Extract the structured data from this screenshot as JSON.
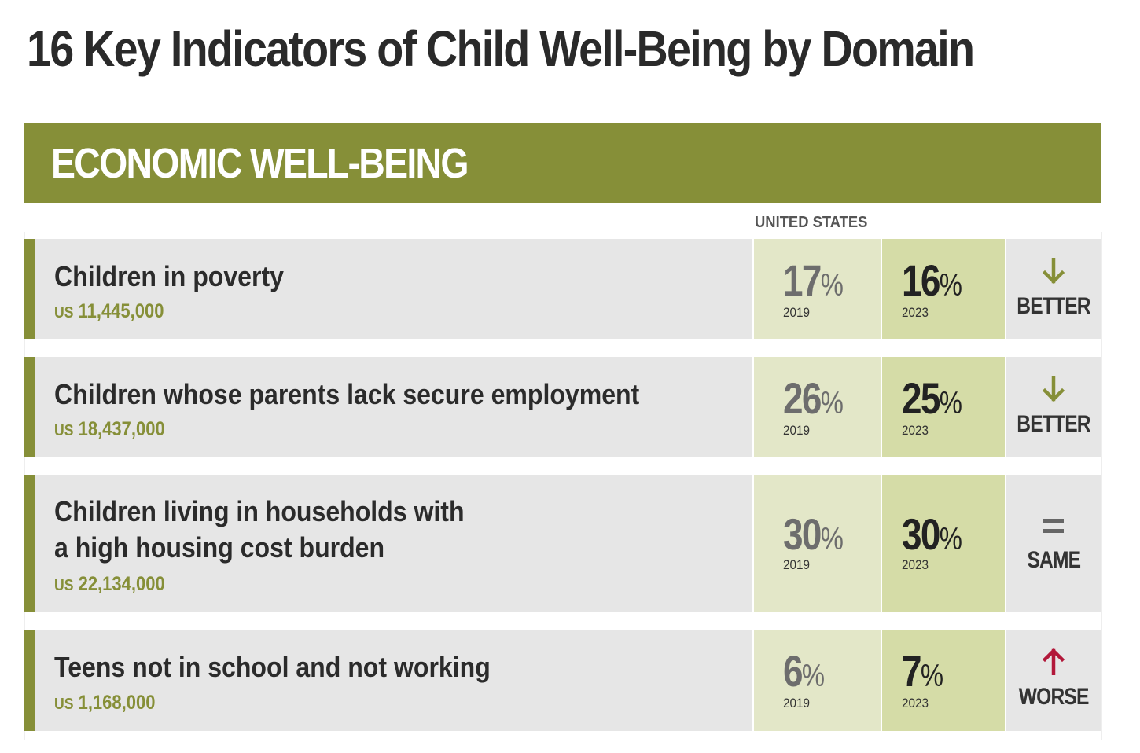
{
  "title": "16 Key Indicators of Child Well-Being by Domain",
  "domain": {
    "name": "ECONOMIC WELL-BEING",
    "color": "#868f38"
  },
  "region_label": "UNITED STATES",
  "year_start": "2019",
  "year_end": "2023",
  "count_prefix": "US",
  "percent_sign": "%",
  "indicators": [
    {
      "name_lines": [
        "Children in poverty"
      ],
      "count": "11,445,000",
      "value_start": "17",
      "value_end": "16",
      "trend": "BETTER",
      "trend_icon": "arrow-down-icon",
      "trend_color": "#868f38"
    },
    {
      "name_lines": [
        "Children whose parents lack secure employment"
      ],
      "count": "18,437,000",
      "value_start": "26",
      "value_end": "25",
      "trend": "BETTER",
      "trend_icon": "arrow-down-icon",
      "trend_color": "#868f38"
    },
    {
      "name_lines": [
        "Children living in households with",
        "a high housing cost burden"
      ],
      "count": "22,134,000",
      "value_start": "30",
      "value_end": "30",
      "trend": "SAME",
      "trend_icon": "equals-icon",
      "trend_color": "#666666"
    },
    {
      "name_lines": [
        "Teens not in school and not working"
      ],
      "count": "1,168,000",
      "value_start": "6",
      "value_end": "7",
      "trend": "WORSE",
      "trend_icon": "arrow-up-icon",
      "trend_color": "#b2183a"
    }
  ]
}
